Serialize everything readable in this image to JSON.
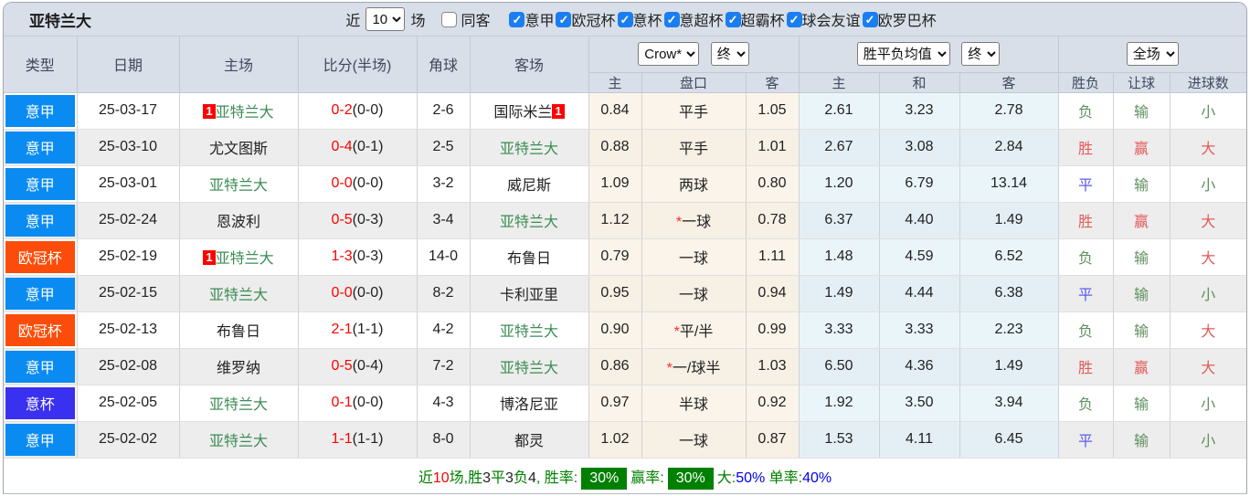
{
  "topbar": {
    "title": "亚特兰大",
    "recent_label": "近",
    "recent_value": "10",
    "games_label": "场",
    "same_filter": {
      "label": "同客",
      "checked": false
    },
    "leagues": [
      {
        "label": "意甲",
        "checked": true
      },
      {
        "label": "欧冠杯",
        "checked": true
      },
      {
        "label": "意杯",
        "checked": true
      },
      {
        "label": "意超杯",
        "checked": true
      },
      {
        "label": "超霸杯",
        "checked": true
      },
      {
        "label": "球会友谊",
        "checked": true
      },
      {
        "label": "欧罗巴杯",
        "checked": true
      }
    ]
  },
  "table": {
    "main_headers": [
      "类型",
      "日期",
      "主场",
      "比分(半场)",
      "角球",
      "客场"
    ],
    "sub_headers": [
      "主",
      "盘口",
      "客",
      "主",
      "和",
      "客",
      "胜负",
      "让球",
      "进球数"
    ],
    "selectors": {
      "bookmaker": "Crow*",
      "bookmaker_stage": "终",
      "avg": "胜平负均值",
      "avg_stage": "终",
      "scope": "全场"
    },
    "rows": [
      {
        "type": "意甲",
        "type_color": "#0a8bf1",
        "date": "25-03-17",
        "home": "亚特兰大",
        "home_green": true,
        "home_badge": "1",
        "score_ft": "0-2",
        "score_ht": "(0-0)",
        "corners": "2-6",
        "away": "国际米兰",
        "away_green": false,
        "away_badge": "1",
        "odds_home": "0.84",
        "handicap": "平手",
        "handicap_star": false,
        "odds_away": "1.05",
        "avg_home": "2.61",
        "avg_draw": "3.23",
        "avg_away": "2.78",
        "result": "负",
        "result_color": "green",
        "handicap_result": "输",
        "handicap_result_color": "green",
        "goals": "小",
        "goals_color": "green"
      },
      {
        "type": "意甲",
        "type_color": "#0a8bf1",
        "date": "25-03-10",
        "home": "尤文图斯",
        "home_green": false,
        "home_badge": "",
        "score_ft": "0-4",
        "score_ht": "(0-1)",
        "corners": "2-5",
        "away": "亚特兰大",
        "away_green": true,
        "away_badge": "",
        "odds_home": "0.88",
        "handicap": "平手",
        "handicap_star": false,
        "odds_away": "1.01",
        "avg_home": "2.67",
        "avg_draw": "3.08",
        "avg_away": "2.84",
        "result": "胜",
        "result_color": "red",
        "handicap_result": "赢",
        "handicap_result_color": "red",
        "goals": "大",
        "goals_color": "red"
      },
      {
        "type": "意甲",
        "type_color": "#0a8bf1",
        "date": "25-03-01",
        "home": "亚特兰大",
        "home_green": true,
        "home_badge": "",
        "score_ft": "0-0",
        "score_ht": "(0-0)",
        "corners": "3-2",
        "away": "威尼斯",
        "away_green": false,
        "away_badge": "",
        "odds_home": "1.09",
        "handicap": "两球",
        "handicap_star": false,
        "odds_away": "0.80",
        "avg_home": "1.20",
        "avg_draw": "6.79",
        "avg_away": "13.14",
        "result": "平",
        "result_color": "blue",
        "handicap_result": "输",
        "handicap_result_color": "green",
        "goals": "小",
        "goals_color": "green"
      },
      {
        "type": "意甲",
        "type_color": "#0a8bf1",
        "date": "25-02-24",
        "home": "恩波利",
        "home_green": false,
        "home_badge": "",
        "score_ft": "0-5",
        "score_ht": "(0-3)",
        "corners": "3-4",
        "away": "亚特兰大",
        "away_green": true,
        "away_badge": "",
        "odds_home": "1.12",
        "handicap": "一球",
        "handicap_star": true,
        "odds_away": "0.78",
        "avg_home": "6.37",
        "avg_draw": "4.40",
        "avg_away": "1.49",
        "result": "胜",
        "result_color": "red",
        "handicap_result": "赢",
        "handicap_result_color": "red",
        "goals": "大",
        "goals_color": "red"
      },
      {
        "type": "欧冠杯",
        "type_color": "#fb4d09",
        "date": "25-02-19",
        "home": "亚特兰大",
        "home_green": true,
        "home_badge": "1",
        "score_ft": "1-3",
        "score_ht": "(0-3)",
        "corners": "14-0",
        "away": "布鲁日",
        "away_green": false,
        "away_badge": "",
        "odds_home": "0.79",
        "handicap": "一球",
        "handicap_star": false,
        "odds_away": "1.11",
        "avg_home": "1.48",
        "avg_draw": "4.59",
        "avg_away": "6.52",
        "result": "负",
        "result_color": "green",
        "handicap_result": "输",
        "handicap_result_color": "green",
        "goals": "大",
        "goals_color": "red"
      },
      {
        "type": "意甲",
        "type_color": "#0a8bf1",
        "date": "25-02-15",
        "home": "亚特兰大",
        "home_green": true,
        "home_badge": "",
        "score_ft": "0-0",
        "score_ht": "(0-0)",
        "corners": "8-2",
        "away": "卡利亚里",
        "away_green": false,
        "away_badge": "",
        "odds_home": "0.95",
        "handicap": "一球",
        "handicap_star": false,
        "odds_away": "0.94",
        "avg_home": "1.49",
        "avg_draw": "4.44",
        "avg_away": "6.38",
        "result": "平",
        "result_color": "blue",
        "handicap_result": "输",
        "handicap_result_color": "green",
        "goals": "小",
        "goals_color": "green"
      },
      {
        "type": "欧冠杯",
        "type_color": "#fb4d09",
        "date": "25-02-13",
        "home": "布鲁日",
        "home_green": false,
        "home_badge": "",
        "score_ft": "2-1",
        "score_ht": "(1-1)",
        "corners": "4-2",
        "away": "亚特兰大",
        "away_green": true,
        "away_badge": "",
        "odds_home": "0.90",
        "handicap": "平/半",
        "handicap_star": true,
        "odds_away": "0.99",
        "avg_home": "3.33",
        "avg_draw": "3.33",
        "avg_away": "2.23",
        "result": "负",
        "result_color": "green",
        "handicap_result": "输",
        "handicap_result_color": "green",
        "goals": "大",
        "goals_color": "red"
      },
      {
        "type": "意甲",
        "type_color": "#0a8bf1",
        "date": "25-02-08",
        "home": "维罗纳",
        "home_green": false,
        "home_badge": "",
        "score_ft": "0-5",
        "score_ht": "(0-4)",
        "corners": "7-2",
        "away": "亚特兰大",
        "away_green": true,
        "away_badge": "",
        "odds_home": "0.86",
        "handicap": "一/球半",
        "handicap_star": true,
        "odds_away": "1.03",
        "avg_home": "6.50",
        "avg_draw": "4.36",
        "avg_away": "1.49",
        "result": "胜",
        "result_color": "red",
        "handicap_result": "赢",
        "handicap_result_color": "red",
        "goals": "大",
        "goals_color": "red"
      },
      {
        "type": "意杯",
        "type_color": "#3a30ef",
        "date": "25-02-05",
        "home": "亚特兰大",
        "home_green": true,
        "home_badge": "",
        "score_ft": "0-1",
        "score_ht": "(0-0)",
        "corners": "4-3",
        "away": "博洛尼亚",
        "away_green": false,
        "away_badge": "",
        "odds_home": "0.97",
        "handicap": "半球",
        "handicap_star": false,
        "odds_away": "0.92",
        "avg_home": "1.92",
        "avg_draw": "3.50",
        "avg_away": "3.94",
        "result": "负",
        "result_color": "green",
        "handicap_result": "输",
        "handicap_result_color": "green",
        "goals": "小",
        "goals_color": "green"
      },
      {
        "type": "意甲",
        "type_color": "#0a8bf1",
        "date": "25-02-02",
        "home": "亚特兰大",
        "home_green": true,
        "home_badge": "",
        "score_ft": "1-1",
        "score_ht": "(1-1)",
        "corners": "8-0",
        "away": "都灵",
        "away_green": false,
        "away_badge": "",
        "odds_home": "1.02",
        "handicap": "一球",
        "handicap_star": false,
        "odds_away": "0.87",
        "avg_home": "1.53",
        "avg_draw": "4.11",
        "avg_away": "6.45",
        "result": "平",
        "result_color": "blue",
        "handicap_result": "输",
        "handicap_result_color": "green",
        "goals": "小",
        "goals_color": "green"
      }
    ]
  },
  "footer": {
    "segments": [
      {
        "text": "近",
        "color": "green"
      },
      {
        "text": "10",
        "color": "red"
      },
      {
        "text": "场,",
        "color": "green"
      },
      {
        "text": "胜",
        "color": "green"
      },
      {
        "text": "3",
        "color": "black"
      },
      {
        "text": "平",
        "color": "green"
      },
      {
        "text": "3",
        "color": "black"
      },
      {
        "text": "负",
        "color": "green"
      },
      {
        "text": "4",
        "color": "black"
      },
      {
        "text": ", 胜率:",
        "color": "green"
      },
      {
        "text": "30%",
        "color": "badge-green"
      },
      {
        "text": "赢率:",
        "color": "green"
      },
      {
        "text": "30%",
        "color": "badge-green"
      },
      {
        "text": "大:",
        "color": "green"
      },
      {
        "text": "50%",
        "color": "blue"
      },
      {
        "text": " 单率:",
        "color": "green"
      },
      {
        "text": "40%",
        "color": "blue"
      }
    ]
  }
}
